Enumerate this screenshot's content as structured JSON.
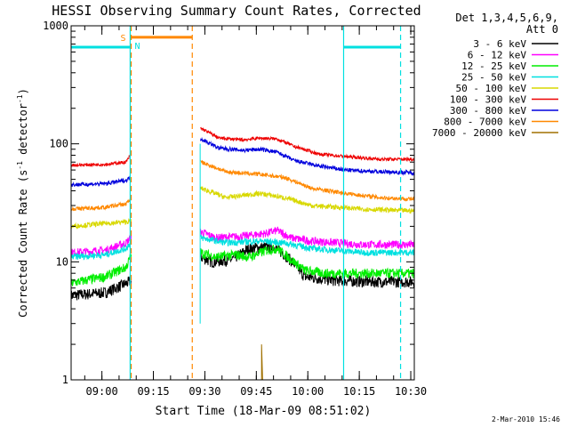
{
  "chart_data": {
    "type": "line",
    "title": "HESSI Observing Summary Count Rates, Corrected",
    "xlabel": "Start Time (18-Mar-09 08:51:02)",
    "ylabel_main": "Corrected Count Rate (s",
    "ylabel_sup1": "-1",
    "ylabel_mid": " detector",
    "ylabel_sup2": "-1",
    "ylabel_end": ")",
    "x_unit": "minutes after 08:51:02",
    "xlim": [
      0,
      100
    ],
    "ylim": [
      1,
      1000
    ],
    "yscale": "log",
    "xticks": [
      {
        "label": "09:00",
        "t": 8.97
      },
      {
        "label": "09:15",
        "t": 23.97
      },
      {
        "label": "09:30",
        "t": 38.97
      },
      {
        "label": "09:45",
        "t": 53.97
      },
      {
        "label": "10:00",
        "t": 68.97
      },
      {
        "label": "10:15",
        "t": 83.97
      },
      {
        "label": "10:30",
        "t": 98.97
      }
    ],
    "yticks": [
      {
        "label": "1",
        "v": 1
      },
      {
        "label": "10",
        "v": 10
      },
      {
        "label": "100",
        "v": 100
      },
      {
        "label": "1000",
        "v": 1000
      }
    ],
    "legend": {
      "header1": "Det 1,3,4,5,6,9,",
      "header2": "Att 0",
      "position": "right"
    },
    "gaps": [
      [
        17.5,
        37.7
      ]
    ],
    "series": [
      {
        "name": "3 - 6 keV",
        "color": "#000000",
        "noise": 0.07,
        "keys": [
          [
            0,
            5.2
          ],
          [
            10,
            5.5
          ],
          [
            13,
            6.0
          ],
          [
            17.3,
            6.8
          ],
          [
            37.8,
            11
          ],
          [
            41,
            10
          ],
          [
            47,
            10.5
          ],
          [
            52,
            13
          ],
          [
            59,
            13.5
          ],
          [
            63,
            11
          ],
          [
            68,
            7.5
          ],
          [
            76,
            7
          ],
          [
            86,
            6.8
          ],
          [
            95,
            6.8
          ],
          [
            100,
            6.8
          ]
        ]
      },
      {
        "name": "6 - 12 keV",
        "color": "#ff00ff",
        "noise": 0.05,
        "keys": [
          [
            0,
            12
          ],
          [
            10,
            12.5
          ],
          [
            16,
            14.5
          ],
          [
            17.3,
            16
          ],
          [
            37.8,
            18
          ],
          [
            42,
            16
          ],
          [
            50,
            16.5
          ],
          [
            57,
            17.5
          ],
          [
            60,
            18.5
          ],
          [
            64,
            16
          ],
          [
            70,
            15
          ],
          [
            85,
            14
          ],
          [
            100,
            14
          ]
        ]
      },
      {
        "name": "12 - 25 keV",
        "color": "#00ee00",
        "noise": 0.06,
        "keys": [
          [
            0,
            6.6
          ],
          [
            10,
            7.5
          ],
          [
            16,
            9
          ],
          [
            17.3,
            11
          ],
          [
            37.8,
            12
          ],
          [
            42,
            11
          ],
          [
            48,
            11.5
          ],
          [
            52,
            11
          ],
          [
            57,
            12.5
          ],
          [
            60,
            13
          ],
          [
            64,
            10.5
          ],
          [
            68,
            8.5
          ],
          [
            74,
            8
          ],
          [
            100,
            8
          ]
        ]
      },
      {
        "name": "25 - 50 keV",
        "color": "#00e0e0",
        "noise": 0.04,
        "keys": [
          [
            0,
            11
          ],
          [
            10,
            11.5
          ],
          [
            16,
            13
          ],
          [
            17.3,
            14.5
          ],
          [
            37.8,
            16
          ],
          [
            45,
            14.5
          ],
          [
            55,
            15
          ],
          [
            62,
            14.5
          ],
          [
            70,
            13
          ],
          [
            85,
            12
          ],
          [
            100,
            12
          ]
        ]
      },
      {
        "name": "50 - 100 keV",
        "color": "#d8d800",
        "noise": 0.03,
        "keys": [
          [
            0,
            20
          ],
          [
            17.3,
            22
          ],
          [
            37.8,
            42
          ],
          [
            45,
            35
          ],
          [
            55,
            38
          ],
          [
            62,
            35
          ],
          [
            70,
            30
          ],
          [
            85,
            28
          ],
          [
            100,
            27
          ]
        ]
      },
      {
        "name": "100 - 300 keV",
        "color": "#ee0000",
        "noise": 0.02,
        "keys": [
          [
            0,
            66
          ],
          [
            10,
            67
          ],
          [
            16,
            70
          ],
          [
            17.3,
            80
          ],
          [
            37.8,
            135
          ],
          [
            43,
            112
          ],
          [
            50,
            108
          ],
          [
            55,
            112
          ],
          [
            60,
            110
          ],
          [
            65,
            95
          ],
          [
            72,
            82
          ],
          [
            80,
            78
          ],
          [
            90,
            74
          ],
          [
            100,
            74
          ]
        ]
      },
      {
        "name": "300 - 800 keV",
        "color": "#0000dd",
        "noise": 0.025,
        "keys": [
          [
            0,
            45
          ],
          [
            10,
            46
          ],
          [
            16,
            49
          ],
          [
            17.3,
            52
          ],
          [
            37.8,
            110
          ],
          [
            43,
            92
          ],
          [
            50,
            88
          ],
          [
            55,
            90
          ],
          [
            60,
            85
          ],
          [
            65,
            72
          ],
          [
            72,
            65
          ],
          [
            80,
            60
          ],
          [
            90,
            58
          ],
          [
            100,
            57
          ]
        ]
      },
      {
        "name": "800 - 7000 keV",
        "color": "#ff8800",
        "noise": 0.025,
        "keys": [
          [
            0,
            28
          ],
          [
            10,
            29
          ],
          [
            16,
            31
          ],
          [
            17.3,
            34
          ],
          [
            37.8,
            70
          ],
          [
            45,
            58
          ],
          [
            55,
            55
          ],
          [
            62,
            52
          ],
          [
            70,
            42
          ],
          [
            80,
            38
          ],
          [
            90,
            35
          ],
          [
            100,
            34
          ]
        ]
      },
      {
        "name": "7000 - 20000 keV",
        "color": "#a07000",
        "noise": 0,
        "keys": [
          [
            55.5,
            1
          ],
          [
            55.5,
            2
          ],
          [
            55.8,
            1
          ]
        ]
      }
    ],
    "annotations": {
      "s_label": "S",
      "n_label": "N",
      "timestamp": "2-Mar-2010 15:46",
      "cyan_bars": [
        [
          0,
          17.2,
          660
        ],
        [
          79.4,
          96.0,
          660
        ]
      ],
      "orange_bar": [
        17.5,
        35.3,
        800
      ],
      "cyan_lines": [
        {
          "t": 17.2,
          "dashed": false
        },
        {
          "t": 79.4,
          "dashed": false
        },
        {
          "t": 96.0,
          "dashed": true
        }
      ],
      "orange_lines": [
        {
          "t": 17.5,
          "dashed": true
        },
        {
          "t": 35.3,
          "dashed": true
        }
      ],
      "cyan_spike": {
        "t": 37.6,
        "from": 3,
        "to": 100
      }
    }
  }
}
